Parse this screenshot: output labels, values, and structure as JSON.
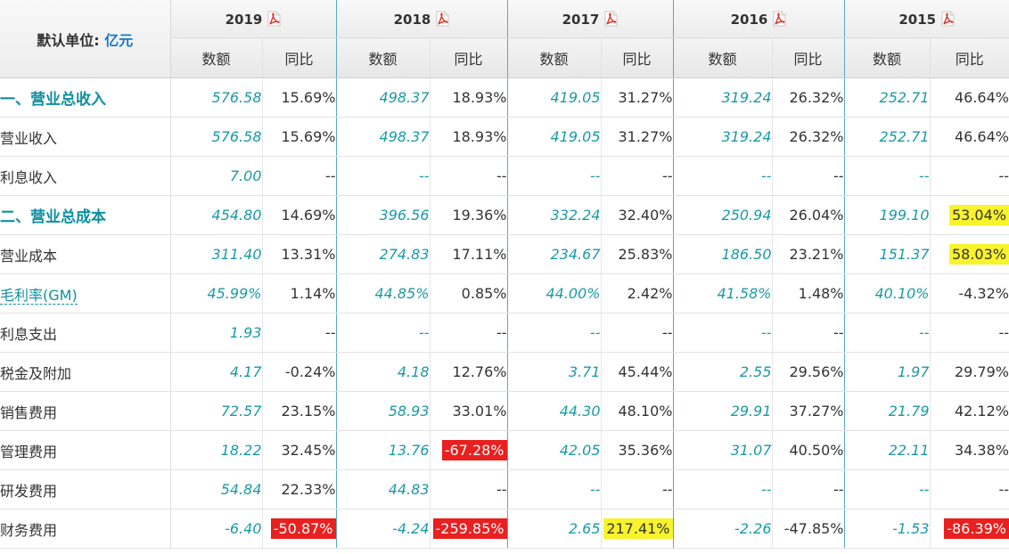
{
  "header": {
    "unit_label": "默认单位:",
    "unit_value": "亿元",
    "years": [
      "2019",
      "2018",
      "2017",
      "2016",
      "2015"
    ],
    "amount_label": "数额",
    "yoy_label": "同比",
    "report_icon": "pdf-icon"
  },
  "rows": [
    {
      "label": "一、营业总收入",
      "type": "section",
      "cells": [
        [
          "576.58",
          "15.69%"
        ],
        [
          "498.37",
          "18.93%"
        ],
        [
          "419.05",
          "31.27%"
        ],
        [
          "319.24",
          "26.32%"
        ],
        [
          "252.71",
          "46.64%"
        ]
      ]
    },
    {
      "label": "营业收入",
      "type": "item",
      "cells": [
        [
          "576.58",
          "15.69%"
        ],
        [
          "498.37",
          "18.93%"
        ],
        [
          "419.05",
          "31.27%"
        ],
        [
          "319.24",
          "26.32%"
        ],
        [
          "252.71",
          "46.64%"
        ]
      ]
    },
    {
      "label": "利息收入",
      "type": "item",
      "cells": [
        [
          "7.00",
          "--"
        ],
        [
          "--",
          "--"
        ],
        [
          "--",
          "--"
        ],
        [
          "--",
          "--"
        ],
        [
          "--",
          "--"
        ]
      ]
    },
    {
      "label": "二、营业总成本",
      "type": "section",
      "cells": [
        [
          "454.80",
          "14.69%"
        ],
        [
          "396.56",
          "19.36%"
        ],
        [
          "332.24",
          "32.40%"
        ],
        [
          "250.94",
          "26.04%"
        ],
        [
          "199.10",
          "53.04%"
        ]
      ]
    },
    {
      "label": "营业成本",
      "type": "item",
      "cells": [
        [
          "311.40",
          "13.31%"
        ],
        [
          "274.83",
          "17.11%"
        ],
        [
          "234.67",
          "25.83%"
        ],
        [
          "186.50",
          "23.21%"
        ],
        [
          "151.37",
          "58.03%"
        ]
      ]
    },
    {
      "label": "毛利率(GM)",
      "type": "gm",
      "cells": [
        [
          "45.99%",
          "1.14%"
        ],
        [
          "44.85%",
          "0.85%"
        ],
        [
          "44.00%",
          "2.42%"
        ],
        [
          "41.58%",
          "1.48%"
        ],
        [
          "40.10%",
          "-4.32%"
        ]
      ]
    },
    {
      "label": "利息支出",
      "type": "item",
      "cells": [
        [
          "1.93",
          "--"
        ],
        [
          "--",
          "--"
        ],
        [
          "--",
          "--"
        ],
        [
          "--",
          "--"
        ],
        [
          "--",
          "--"
        ]
      ]
    },
    {
      "label": "税金及附加",
      "type": "item",
      "cells": [
        [
          "4.17",
          "-0.24%"
        ],
        [
          "4.18",
          "12.76%"
        ],
        [
          "3.71",
          "45.44%"
        ],
        [
          "2.55",
          "29.56%"
        ],
        [
          "1.97",
          "29.79%"
        ]
      ]
    },
    {
      "label": "销售费用",
      "type": "item",
      "cells": [
        [
          "72.57",
          "23.15%"
        ],
        [
          "58.93",
          "33.01%"
        ],
        [
          "44.30",
          "48.10%"
        ],
        [
          "29.91",
          "37.27%"
        ],
        [
          "21.79",
          "42.12%"
        ]
      ]
    },
    {
      "label": "管理费用",
      "type": "item",
      "cells": [
        [
          "18.22",
          "32.45%"
        ],
        [
          "13.76",
          "-67.28%"
        ],
        [
          "42.05",
          "35.36%"
        ],
        [
          "31.07",
          "40.50%"
        ],
        [
          "22.11",
          "34.38%"
        ]
      ]
    },
    {
      "label": "研发费用",
      "type": "item",
      "cells": [
        [
          "54.84",
          "22.33%"
        ],
        [
          "44.83",
          "--"
        ],
        [
          "--",
          "--"
        ],
        [
          "--",
          "--"
        ],
        [
          "--",
          "--"
        ]
      ]
    },
    {
      "label": "财务费用",
      "type": "item",
      "cells": [
        [
          "-6.40",
          "-50.87%"
        ],
        [
          "-4.24",
          "-259.85%"
        ],
        [
          "2.65",
          "217.41%"
        ],
        [
          "-2.26",
          "-47.85%"
        ],
        [
          "-1.53",
          "-86.39%"
        ]
      ]
    }
  ],
  "highlights": {
    "yellow": "#f8f32b",
    "red": "#e8201f",
    "cells": [
      {
        "row": 3,
        "year": 4,
        "color": "yellow"
      },
      {
        "row": 4,
        "year": 4,
        "color": "yellow"
      },
      {
        "row": 9,
        "year": 1,
        "color": "red"
      },
      {
        "row": 11,
        "year": 0,
        "color": "red"
      },
      {
        "row": 11,
        "year": 1,
        "color": "red"
      },
      {
        "row": 11,
        "year": 2,
        "color": "yellow"
      },
      {
        "row": 11,
        "year": 4,
        "color": "red"
      }
    ]
  }
}
